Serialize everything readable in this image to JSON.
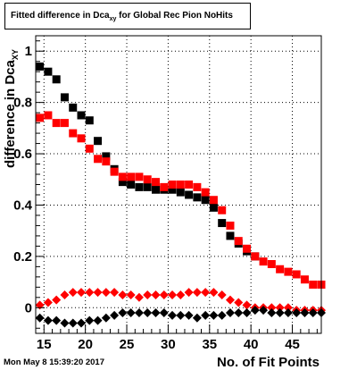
{
  "title": {
    "prefix": "Fitted difference in Dca",
    "subscript": "xy",
    "suffix": " for Global Rec Pion NoHits"
  },
  "timestamp": "Mon May  8 15:39:20 2017",
  "colors": {
    "black": "#000000",
    "red": "#ff0000"
  },
  "chart_data": {
    "type": "scatter",
    "xlabel": "No. of Fit Points",
    "ylabel": "difference in Dca",
    "ylabel_subscript": "XY",
    "xlim": [
      14,
      48.5
    ],
    "ylim": [
      -0.1,
      1.06
    ],
    "x_ticks": [
      15,
      20,
      25,
      30,
      35,
      40,
      45
    ],
    "y_ticks": [
      0,
      0.2,
      0.4,
      0.6,
      0.8,
      1
    ],
    "y_tick_labels": [
      "0",
      "0.2",
      "0.4",
      "0.6",
      "0.8",
      "1"
    ],
    "grid": true,
    "series": [
      {
        "marker": "square",
        "color": "#000000",
        "points": [
          [
            14.5,
            0.94
          ],
          [
            15.5,
            0.92
          ],
          [
            16.5,
            0.89
          ],
          [
            17.5,
            0.82
          ],
          [
            18.5,
            0.78
          ],
          [
            19.5,
            0.75
          ],
          [
            20.5,
            0.73
          ],
          [
            21.5,
            0.65
          ],
          [
            22.5,
            0.59
          ],
          [
            23.5,
            0.54
          ],
          [
            24.5,
            0.49
          ],
          [
            25.5,
            0.48
          ],
          [
            26.5,
            0.47
          ],
          [
            27.5,
            0.47
          ],
          [
            28.5,
            0.46
          ],
          [
            29.5,
            0.46
          ],
          [
            30.5,
            0.46
          ],
          [
            31.5,
            0.45
          ],
          [
            32.5,
            0.44
          ],
          [
            33.5,
            0.43
          ],
          [
            34.5,
            0.42
          ],
          [
            35.5,
            0.39
          ],
          [
            36.5,
            0.33
          ],
          [
            37.5,
            0.28
          ],
          [
            38.5,
            0.25
          ],
          [
            39.5,
            0.22
          ],
          [
            40.5,
            0.2
          ]
        ]
      },
      {
        "marker": "square",
        "color": "#ff0000",
        "points": [
          [
            14.5,
            0.74
          ],
          [
            15.5,
            0.75
          ],
          [
            16.5,
            0.72
          ],
          [
            17.5,
            0.72
          ],
          [
            18.5,
            0.68
          ],
          [
            19.5,
            0.66
          ],
          [
            20.5,
            0.62
          ],
          [
            21.5,
            0.58
          ],
          [
            22.5,
            0.57
          ],
          [
            23.5,
            0.53
          ],
          [
            24.5,
            0.51
          ],
          [
            25.5,
            0.51
          ],
          [
            26.5,
            0.51
          ],
          [
            27.5,
            0.5
          ],
          [
            28.5,
            0.49
          ],
          [
            29.5,
            0.47
          ],
          [
            30.5,
            0.48
          ],
          [
            31.5,
            0.48
          ],
          [
            32.5,
            0.48
          ],
          [
            33.5,
            0.47
          ],
          [
            34.5,
            0.45
          ],
          [
            35.5,
            0.42
          ],
          [
            36.5,
            0.38
          ],
          [
            37.5,
            0.32
          ],
          [
            38.5,
            0.26
          ],
          [
            39.5,
            0.23
          ],
          [
            40.5,
            0.2
          ],
          [
            41.5,
            0.18
          ],
          [
            42.5,
            0.17
          ],
          [
            43.5,
            0.15
          ],
          [
            44.5,
            0.14
          ],
          [
            45.5,
            0.13
          ],
          [
            46.5,
            0.11
          ],
          [
            47.5,
            0.09
          ],
          [
            48.5,
            0.09
          ]
        ]
      },
      {
        "marker": "diamond",
        "color": "#ff0000",
        "points": [
          [
            14.5,
            0.01
          ],
          [
            15.5,
            0.02
          ],
          [
            16.5,
            0.03
          ],
          [
            17.5,
            0.05
          ],
          [
            18.5,
            0.06
          ],
          [
            19.5,
            0.06
          ],
          [
            20.5,
            0.06
          ],
          [
            21.5,
            0.06
          ],
          [
            22.5,
            0.06
          ],
          [
            23.5,
            0.06
          ],
          [
            24.5,
            0.05
          ],
          [
            25.5,
            0.05
          ],
          [
            26.5,
            0.04
          ],
          [
            27.5,
            0.05
          ],
          [
            28.5,
            0.05
          ],
          [
            29.5,
            0.05
          ],
          [
            30.5,
            0.05
          ],
          [
            31.5,
            0.05
          ],
          [
            32.5,
            0.06
          ],
          [
            33.5,
            0.06
          ],
          [
            34.5,
            0.06
          ],
          [
            35.5,
            0.06
          ],
          [
            36.5,
            0.05
          ],
          [
            37.5,
            0.03
          ],
          [
            38.5,
            0.02
          ],
          [
            39.5,
            0.01
          ],
          [
            40.5,
            0.0
          ],
          [
            41.5,
            0.0
          ],
          [
            42.5,
            0.0
          ],
          [
            43.5,
            0.0
          ],
          [
            44.5,
            0.0
          ],
          [
            45.5,
            -0.01
          ],
          [
            46.5,
            -0.01
          ],
          [
            47.5,
            -0.01
          ],
          [
            48.5,
            -0.01
          ]
        ]
      },
      {
        "marker": "diamond",
        "color": "#000000",
        "points": [
          [
            14.5,
            -0.04
          ],
          [
            15.5,
            -0.05
          ],
          [
            16.5,
            -0.05
          ],
          [
            17.5,
            -0.06
          ],
          [
            18.5,
            -0.06
          ],
          [
            19.5,
            -0.06
          ],
          [
            20.5,
            -0.05
          ],
          [
            21.5,
            -0.05
          ],
          [
            22.5,
            -0.04
          ],
          [
            23.5,
            -0.03
          ],
          [
            24.5,
            -0.02
          ],
          [
            25.5,
            -0.02
          ],
          [
            26.5,
            -0.02
          ],
          [
            27.5,
            -0.02
          ],
          [
            28.5,
            -0.02
          ],
          [
            29.5,
            -0.02
          ],
          [
            30.5,
            -0.03
          ],
          [
            31.5,
            -0.03
          ],
          [
            32.5,
            -0.03
          ],
          [
            33.5,
            -0.04
          ],
          [
            34.5,
            -0.03
          ],
          [
            35.5,
            -0.03
          ],
          [
            36.5,
            -0.03
          ],
          [
            37.5,
            -0.02
          ],
          [
            38.5,
            -0.02
          ],
          [
            39.5,
            -0.02
          ],
          [
            40.5,
            -0.01
          ],
          [
            41.5,
            -0.01
          ],
          [
            42.5,
            -0.02
          ],
          [
            43.5,
            -0.02
          ],
          [
            44.5,
            -0.02
          ],
          [
            45.5,
            -0.02
          ],
          [
            46.5,
            -0.02
          ],
          [
            47.5,
            -0.02
          ],
          [
            48.5,
            -0.02
          ]
        ]
      }
    ]
  }
}
